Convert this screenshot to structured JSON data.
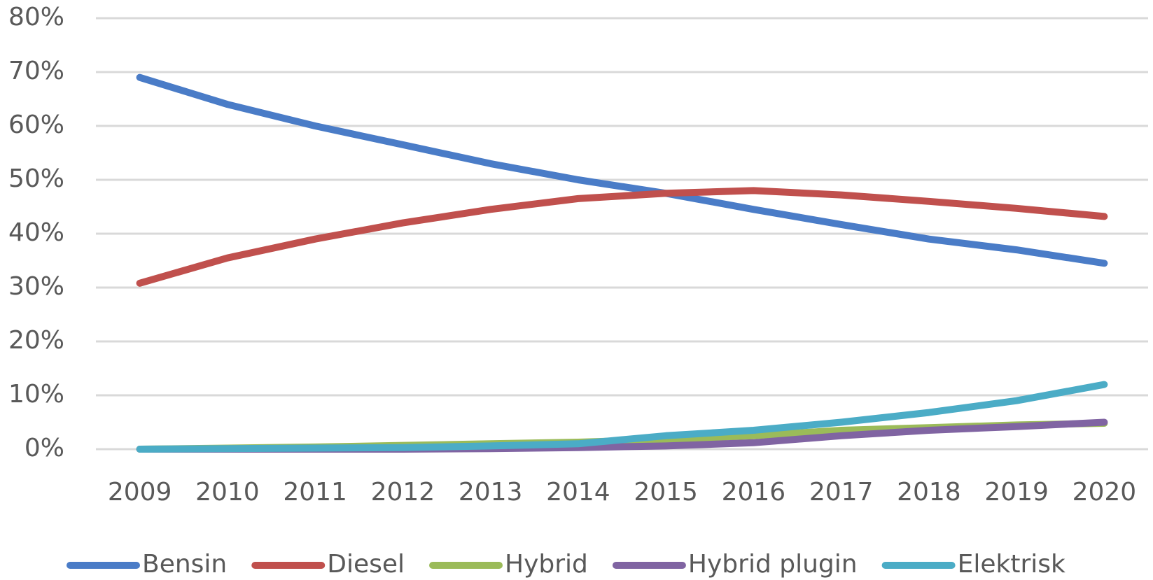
{
  "chart_data": {
    "type": "line",
    "categories": [
      "2009",
      "2010",
      "2011",
      "2012",
      "2013",
      "2014",
      "2015",
      "2016",
      "2017",
      "2018",
      "2019",
      "2020"
    ],
    "series": [
      {
        "name": "Bensin",
        "color": "#4a7cc7",
        "values": [
          69,
          64,
          60,
          56.5,
          53,
          50,
          47.5,
          44.5,
          41.7,
          39,
          37,
          34.5
        ]
      },
      {
        "name": "Diesel",
        "color": "#c0504d",
        "values": [
          30.8,
          35.5,
          39,
          42,
          44.5,
          46.5,
          47.5,
          48,
          47.2,
          46,
          44.7,
          43.2
        ]
      },
      {
        "name": "Hybrid",
        "color": "#9bbb59",
        "values": [
          0,
          0.2,
          0.4,
          0.7,
          1,
          1.3,
          1.8,
          2.5,
          3.5,
          4,
          4.5,
          4.8
        ]
      },
      {
        "name": "Hybrid plugin",
        "color": "#8064a2",
        "values": [
          0,
          0,
          0,
          0,
          0.1,
          0.3,
          0.6,
          1.2,
          2.5,
          3.5,
          4.2,
          5
        ]
      },
      {
        "name": "Elektrisk",
        "color": "#4bacc6",
        "values": [
          0,
          0.1,
          0.2,
          0.3,
          0.6,
          1,
          2.5,
          3.5,
          5,
          6.8,
          9,
          12
        ]
      }
    ],
    "ylim": [
      0,
      80
    ],
    "yticks": [
      {
        "value": 0,
        "label": "0%"
      },
      {
        "value": 10,
        "label": "10%"
      },
      {
        "value": 20,
        "label": "20%"
      },
      {
        "value": 30,
        "label": "30%"
      },
      {
        "value": 40,
        "label": "40%"
      },
      {
        "value": 50,
        "label": "50%"
      },
      {
        "value": 60,
        "label": "60%"
      },
      {
        "value": 70,
        "label": "70%"
      },
      {
        "value": 80,
        "label": "80%"
      }
    ],
    "grid": true,
    "legend": "bottom"
  }
}
